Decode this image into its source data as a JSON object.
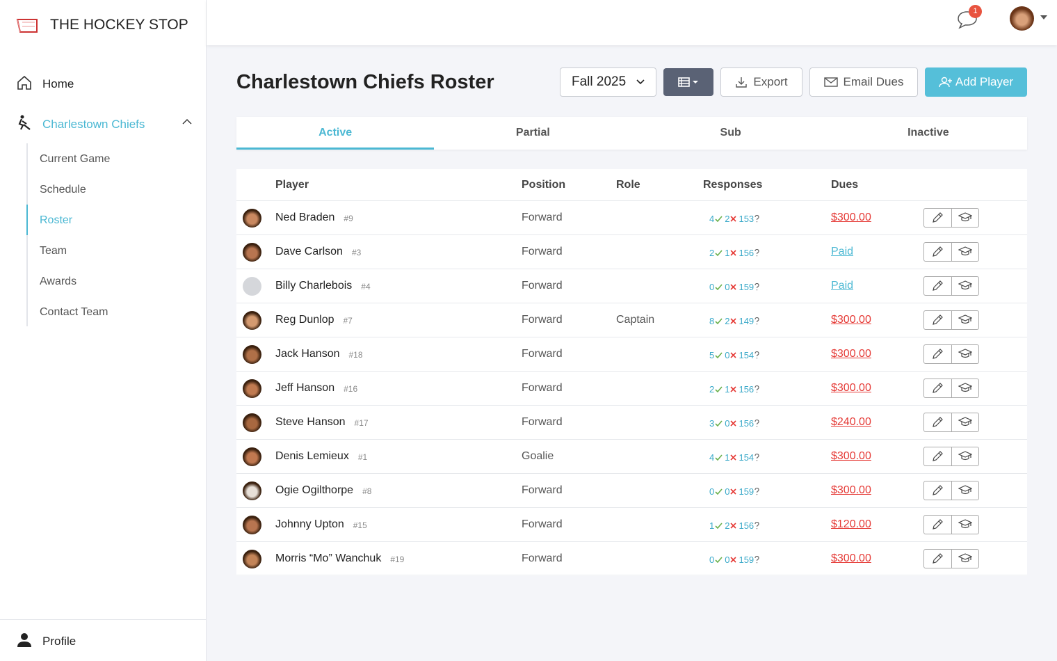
{
  "sidebar": {
    "brand": "THE HOCKEY STOP",
    "home": "Home",
    "team": "Charlestown Chiefs",
    "subnav": [
      "Current Game",
      "Schedule",
      "Roster",
      "Team",
      "Awards",
      "Contact Team"
    ],
    "profile": "Profile"
  },
  "topbar": {
    "notifications": 1
  },
  "header": {
    "title": "Charlestown Chiefs Roster",
    "season": "Fall 2025",
    "export": "Export",
    "email": "Email Dues",
    "add": "Add Player"
  },
  "tabs": [
    "Active",
    "Partial",
    "Sub",
    "Inactive"
  ],
  "table": {
    "columns": [
      "Player",
      "Position",
      "Role",
      "Responses",
      "Dues"
    ],
    "rows": [
      {
        "name": "Ned Braden",
        "number": "#9",
        "position": "Forward",
        "responses": {
          "yes": 4,
          "no": 2,
          "unknown": 153
        },
        "dues": "$300.00"
      },
      {
        "name": "Dave Carlson",
        "number": "#3",
        "position": "Forward",
        "responses": {
          "yes": 2,
          "no": 1,
          "unknown": 156
        },
        "dues": "Paid"
      },
      {
        "name": "Billy Charlebois",
        "number": "#4",
        "position": "Forward",
        "responses": {
          "yes": 0,
          "no": 0,
          "unknown": 159
        },
        "dues": "Paid"
      },
      {
        "name": "Reg Dunlop",
        "number": "#7",
        "position": "Forward",
        "role": "Captain",
        "responses": {
          "yes": 8,
          "no": 2,
          "unknown": 149
        },
        "dues": "$300.00"
      },
      {
        "name": "Jack Hanson",
        "number": "#18",
        "position": "Forward",
        "responses": {
          "yes": 5,
          "no": 0,
          "unknown": 154
        },
        "dues": "$300.00"
      },
      {
        "name": "Jeff Hanson",
        "number": "#16",
        "position": "Forward",
        "responses": {
          "yes": 2,
          "no": 1,
          "unknown": 156
        },
        "dues": "$300.00"
      },
      {
        "name": "Steve Hanson",
        "number": "#17",
        "position": "Forward",
        "responses": {
          "yes": 3,
          "no": 0,
          "unknown": 156
        },
        "dues": "$240.00"
      },
      {
        "name": "Denis Lemieux",
        "number": "#1",
        "position": "Goalie",
        "responses": {
          "yes": 4,
          "no": 1,
          "unknown": 154
        },
        "dues": "$300.00"
      },
      {
        "name": "Ogie Ogilthorpe",
        "number": "#8",
        "position": "Forward",
        "responses": {
          "yes": 0,
          "no": 0,
          "unknown": 159
        },
        "dues": "$300.00"
      },
      {
        "name": "Johnny Upton",
        "number": "#15",
        "position": "Forward",
        "responses": {
          "yes": 1,
          "no": 2,
          "unknown": 156
        },
        "dues": "$120.00"
      },
      {
        "name": "Morris “Mo” Wanchuk",
        "number": "#19",
        "position": "Forward",
        "responses": {
          "yes": 0,
          "no": 0,
          "unknown": 159
        },
        "dues": "$300.00"
      }
    ]
  }
}
